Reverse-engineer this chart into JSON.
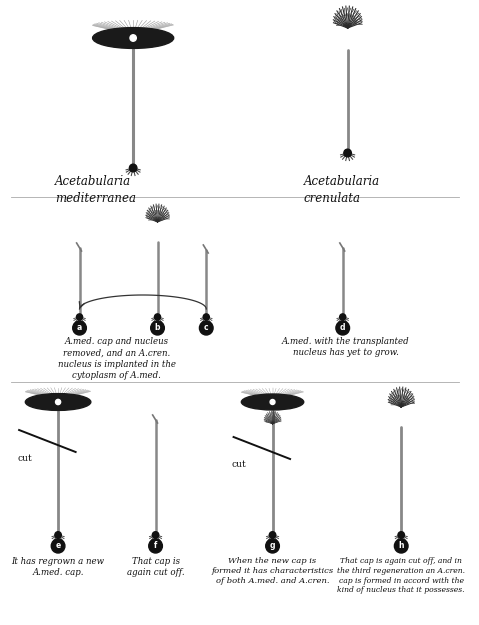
{
  "bg_color": "#ffffff",
  "title_left": "Acetabularia\nmediterranea",
  "title_right": "Acetabularia\ncrenulata",
  "caption_abc": "A.med. cap and nucleus\nremoved, and an A.cren.\nnucleus is implanted in the\ncytoplasm of A.med.",
  "caption_d": "A.med. with the transplanted\nnucleus has yet to grow.",
  "caption_e": "It has regrown a new\nA.med. cap.",
  "caption_f": "That cap is\nagain cut off.",
  "caption_g": "When the new cap is\nformed it has characteristics\nof both A.med. and A.cren.",
  "caption_h": "That cap is again cut off, and in\nthe third regeneration an A.cren.\ncap is formed in accord with the\nkind of nucleus that it possesses.",
  "circle_bg": "#111111",
  "circle_text": "#ffffff",
  "stem_color": "#888888",
  "dark_color": "#111111",
  "mid_color": "#555555",
  "light_color": "#aaaaaa"
}
